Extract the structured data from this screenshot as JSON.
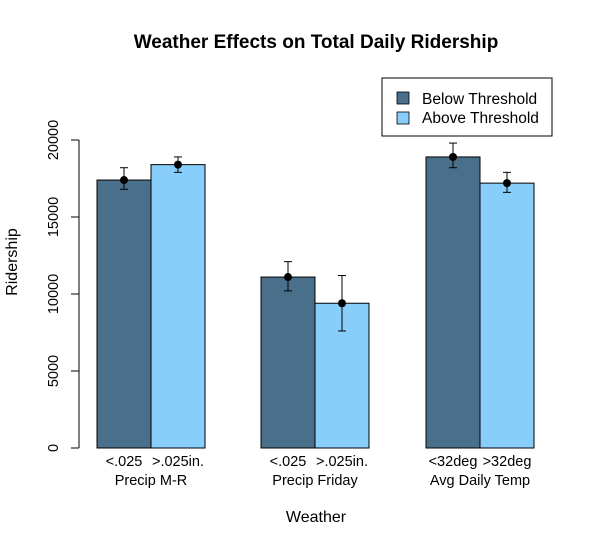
{
  "chart_data": {
    "type": "bar",
    "title": "Weather Effects on Total Daily Ridership",
    "xlabel": "Weather",
    "ylabel": "Ridership",
    "ylim": [
      0,
      20000
    ],
    "yticks": [
      0,
      5000,
      10000,
      15000,
      20000
    ],
    "ytick_labels": [
      "0",
      "5000",
      "10000",
      "15000",
      "20000"
    ],
    "grid": false,
    "legend_position": "top-right",
    "groups": [
      {
        "name": "Precip M-R",
        "bar_labels": [
          "<.025",
          ">.025in."
        ],
        "values": [
          17400,
          18400
        ],
        "error_low": [
          16800,
          17900
        ],
        "error_high": [
          18200,
          18900
        ]
      },
      {
        "name": "Precip Friday",
        "bar_labels": [
          "<.025",
          ">.025in."
        ],
        "values": [
          11100,
          9400
        ],
        "error_low": [
          10200,
          7600
        ],
        "error_high": [
          12100,
          11200
        ]
      },
      {
        "name": "Avg Daily Temp",
        "bar_labels": [
          "<32deg",
          ">32deg"
        ],
        "values": [
          18900,
          17200
        ],
        "error_low": [
          18200,
          16600
        ],
        "error_high": [
          19800,
          17900
        ]
      }
    ],
    "series": [
      {
        "name": "Below Threshold",
        "color": "#4a6f8a",
        "values": [
          17400,
          11100,
          18900
        ]
      },
      {
        "name": "Above Threshold",
        "color": "#87cefa",
        "values": [
          18400,
          9400,
          17200
        ]
      }
    ]
  }
}
